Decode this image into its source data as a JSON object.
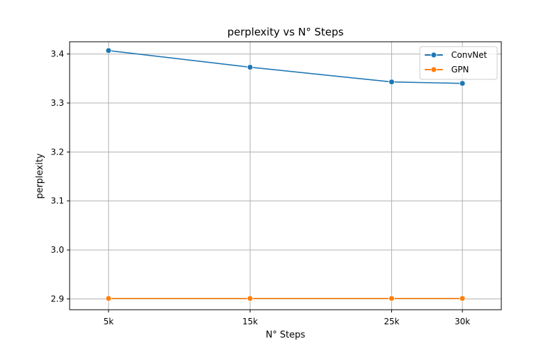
{
  "chart_data": {
    "type": "line",
    "title": "perplexity vs N° Steps",
    "xlabel": "N° Steps",
    "ylabel": "perplexity",
    "categories": [
      "5k",
      "15k",
      "25k",
      "30k"
    ],
    "x": [
      5,
      15,
      25,
      30
    ],
    "y_ticks": [
      "2.9",
      "3.0",
      "3.1",
      "3.2",
      "3.3",
      "3.4"
    ],
    "ylim": [
      2.878,
      3.425
    ],
    "grid": true,
    "legend": "top-right",
    "series": [
      {
        "name": "ConvNet",
        "color": "#1f77b4",
        "values": [
          3.407,
          3.373,
          3.343,
          3.34
        ]
      },
      {
        "name": "GPN",
        "color": "#ff7f0e",
        "values": [
          2.901,
          2.901,
          2.901,
          2.901
        ]
      }
    ]
  }
}
